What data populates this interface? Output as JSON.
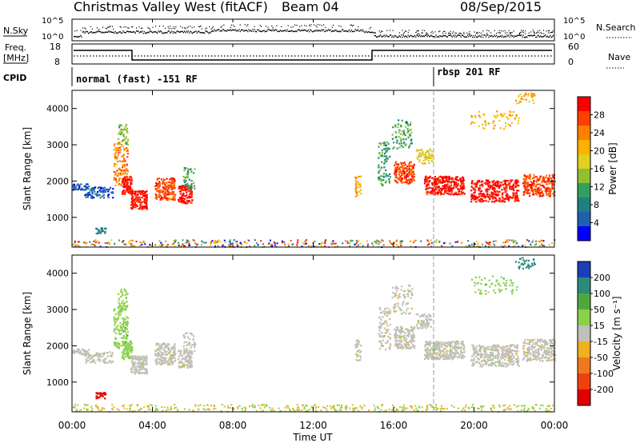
{
  "header": {
    "title": "Christmas Valley West (fitACF)",
    "beam": "Beam 04",
    "date": "08/Sep/2015"
  },
  "noise_panel": {
    "left_label": "N.Sky",
    "right_label": "N.Search",
    "left_ticks": [
      "10^5",
      "10^0"
    ],
    "right_ticks": [
      "10^5",
      "10^0"
    ]
  },
  "freq_panel": {
    "left_label_1": "Freq.",
    "left_label_2": "[MHz]",
    "right_label": "Nave",
    "left_ticks": [
      "18",
      "8"
    ],
    "right_ticks": [
      "60",
      "0"
    ]
  },
  "cpid_panel": {
    "label": "CPID",
    "segments": [
      {
        "name": "normal (fast) -151 RF",
        "start_hour": 0
      },
      {
        "name": "rbsp 201 RF",
        "start_hour": 18
      }
    ]
  },
  "chart_data": [
    {
      "type": "scatter",
      "name": "Power",
      "xlabel": "Time UT",
      "ylabel": "Slant Range [km]",
      "colorbar_label": "Power [dB]",
      "colorbar_ticks": [
        "28",
        "24",
        "20",
        "16",
        "12",
        "8",
        "4"
      ],
      "colorbar_colors": [
        "#ff0000",
        "#ff4000",
        "#ff8000",
        "#ffb000",
        "#e0d020",
        "#90c030",
        "#30a060",
        "#208080",
        "#2060b0",
        "#0000ff"
      ],
      "xlim": [
        0,
        24
      ],
      "ylim": [
        180,
        4500
      ],
      "yticks": [
        "4000",
        "3000",
        "2000",
        "1000"
      ]
    },
    {
      "type": "scatter",
      "name": "Velocity",
      "xlabel": "Time UT",
      "ylabel": "Slant Range [km]",
      "colorbar_label": "Velocity [m s⁻¹]",
      "colorbar_ticks": [
        "200",
        "100",
        "50",
        "15",
        "-15",
        "-50",
        "-100",
        "-200"
      ],
      "colorbar_colors": [
        "#1a3fb4",
        "#2d8a7a",
        "#4fa83c",
        "#8ad14a",
        "#c0c0b8",
        "#f0b020",
        "#f07820",
        "#f04010",
        "#e00000"
      ],
      "xlim": [
        0,
        24
      ],
      "ylim": [
        180,
        4500
      ],
      "yticks": [
        "4000",
        "3000",
        "2000",
        "1000"
      ]
    }
  ],
  "time_axis": {
    "label": "Time UT",
    "ticks": [
      "00:00",
      "04:00",
      "08:00",
      "12:00",
      "16:00",
      "20:00",
      "00:00"
    ]
  }
}
